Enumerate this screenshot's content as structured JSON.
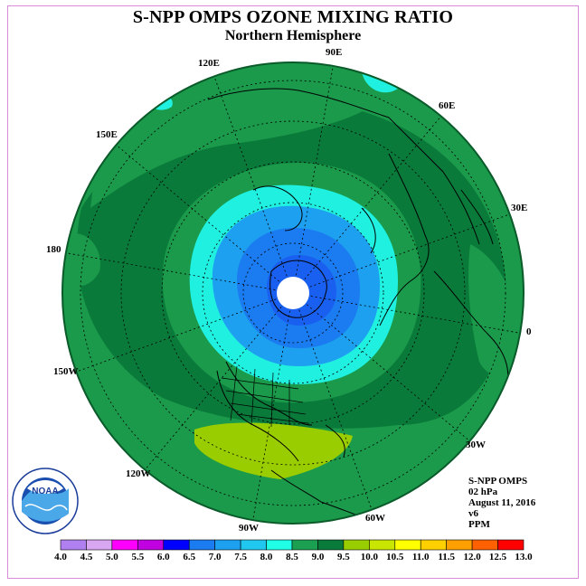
{
  "title": "S-NPP OMPS OZONE MIXING RATIO",
  "subtitle": "Northern Hemisphere",
  "longitude_labels": {
    "e90": "90E",
    "e60": "60E",
    "e30": "30E",
    "zero": "0",
    "w30": "30W",
    "w60": "60W",
    "w90": "90W",
    "w120": "120W",
    "w150": "150W",
    "d180": "180",
    "e150": "150E",
    "e120": "120E"
  },
  "info": {
    "instrument": "S-NPP OMPS",
    "level": "02 hPa",
    "date": "August 11, 2016",
    "version": "v6",
    "units": "PPM"
  },
  "logo": {
    "text": "NOAA",
    "ring_text": "NATIONAL OCEANIC AND ATMOSPHERIC ADMINISTRATION · U.S. DEPARTMENT OF COMMERCE"
  },
  "colorbar": {
    "labels": [
      "4.0",
      "4.5",
      "5.0",
      "5.5",
      "6.0",
      "6.5",
      "7.0",
      "7.5",
      "8.0",
      "8.5",
      "9.0",
      "9.5",
      "10.0",
      "10.5",
      "11.0",
      "11.5",
      "12.0",
      "12.5",
      "13.0"
    ],
    "colors": [
      "#b07ff0",
      "#d9a6f2",
      "#ff00ff",
      "#c000e0",
      "#0000ff",
      "#1a7cf0",
      "#1ea0f0",
      "#20c8f0",
      "#20ffe6",
      "#1aa050",
      "#0a7a3a",
      "#9acd00",
      "#c8e600",
      "#ffff00",
      "#ffd000",
      "#ffa000",
      "#ff6000",
      "#ff0000",
      "#a0522d"
    ]
  },
  "map_colors": {
    "green_dark": "#0a7a3a",
    "green": "#1a9a4a",
    "cyan": "#20f0e0",
    "blue_light": "#1ea0f0",
    "blue": "#1a7cf0",
    "blue_dark": "#1a60f0",
    "lime": "#9acd00"
  }
}
